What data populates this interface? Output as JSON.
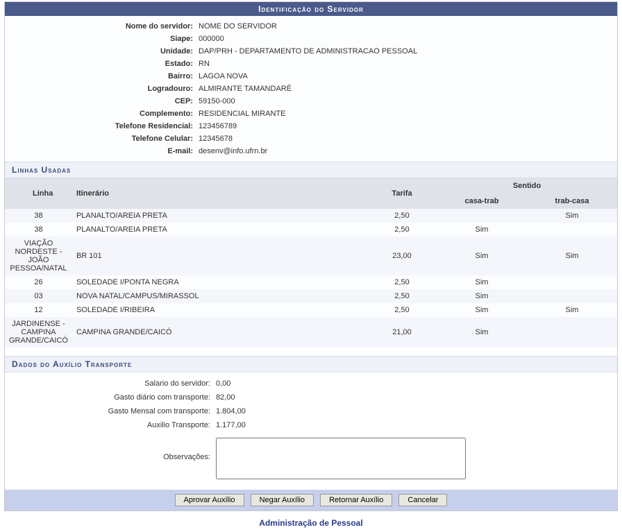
{
  "header": {
    "title": "Identificação do Servidor"
  },
  "identificacao": {
    "labels": {
      "nome": "Nome do servidor:",
      "siape": "Siape:",
      "unidade": "Unidade:",
      "estado": "Estado:",
      "bairro": "Bairro:",
      "logradouro": "Logradouro:",
      "cep": "CEP:",
      "complemento": "Complemento:",
      "tel_res": "Telefone Residencial:",
      "tel_cel": "Telefone Celular:",
      "email": "E-mail:"
    },
    "values": {
      "nome": "NOME DO SERVIDOR",
      "siape": "000000",
      "unidade": "DAP/PRH - DEPARTAMENTO DE ADMINISTRACAO PESSOAL",
      "estado": "RN",
      "bairro": "LAGOA NOVA",
      "logradouro": "ALMIRANTE TAMANDARÉ",
      "cep": "59150-000",
      "complemento": "RESIDENCIAL MIRANTE",
      "tel_res": "123456789",
      "tel_cel": "12345678",
      "email": "desenv@info.ufrn.br"
    }
  },
  "linhas": {
    "title": "Linhas Usadas",
    "headers": {
      "linha": "Linha",
      "itinerario": "Itinerário",
      "tarifa": "Tarifa",
      "sentido": "Sentido",
      "casa_trab": "casa-trab",
      "trab_casa": "trab-casa"
    },
    "rows": [
      {
        "linha": "38",
        "itinerario": "PLANALTO/AREIA PRETA",
        "tarifa": "2,50",
        "casa_trab": "",
        "trab_casa": "Sim"
      },
      {
        "linha": "38",
        "itinerario": "PLANALTO/AREIA PRETA",
        "tarifa": "2,50",
        "casa_trab": "Sim",
        "trab_casa": ""
      },
      {
        "linha": "VIAÇÃO NORDESTE - JOÃO PESSOA/NATAL",
        "itinerario": "BR 101",
        "tarifa": "23,00",
        "casa_trab": "Sim",
        "trab_casa": "Sim"
      },
      {
        "linha": "26",
        "itinerario": "SOLEDADE I/PONTA NEGRA",
        "tarifa": "2,50",
        "casa_trab": "Sim",
        "trab_casa": ""
      },
      {
        "linha": "03",
        "itinerario": "NOVA NATAL/CAMPUS/MIRASSOL",
        "tarifa": "2,50",
        "casa_trab": "Sim",
        "trab_casa": ""
      },
      {
        "linha": "12",
        "itinerario": "SOLEDADE I/RIBEIRA",
        "tarifa": "2,50",
        "casa_trab": "Sim",
        "trab_casa": "Sim"
      },
      {
        "linha": "JARDINENSE - CAMPINA GRANDE/CAICÓ",
        "itinerario": "CAMPINA GRANDE/CAICÓ",
        "tarifa": "21,00",
        "casa_trab": "Sim",
        "trab_casa": ""
      }
    ]
  },
  "auxilio": {
    "title": "Dados do Auxílio Transporte",
    "labels": {
      "salario": "Salario do servidor:",
      "gasto_diario": "Gasto diário com transporte:",
      "gasto_mensal": "Gasto Mensal com transporte:",
      "auxilio": "Auxilio Transporte:",
      "observacoes": "Observações:"
    },
    "values": {
      "salario": "0,00",
      "gasto_diario": "82,00",
      "gasto_mensal": "1.804,00",
      "auxilio": "1.177,00",
      "observacoes": ""
    }
  },
  "buttons": {
    "aprovar": "Aprovar Auxílio",
    "negar": "Negar Auxílio",
    "retornar": "Retornar Auxílio",
    "cancelar": "Cancelar"
  },
  "footer": {
    "link": "Administração de Pessoal"
  },
  "style": {
    "header_bg": "#4a5a8a",
    "header_fg": "#ffffff",
    "section_bg": "#eef1f8",
    "section_fg": "#3a4a7a",
    "th_bg": "#dfe2e8",
    "row_even_bg": "#f4f6fb",
    "row_odd_bg": "#fcfdff",
    "button_bar_bg": "#c6d0ec",
    "link_color": "#2a3a8a"
  }
}
